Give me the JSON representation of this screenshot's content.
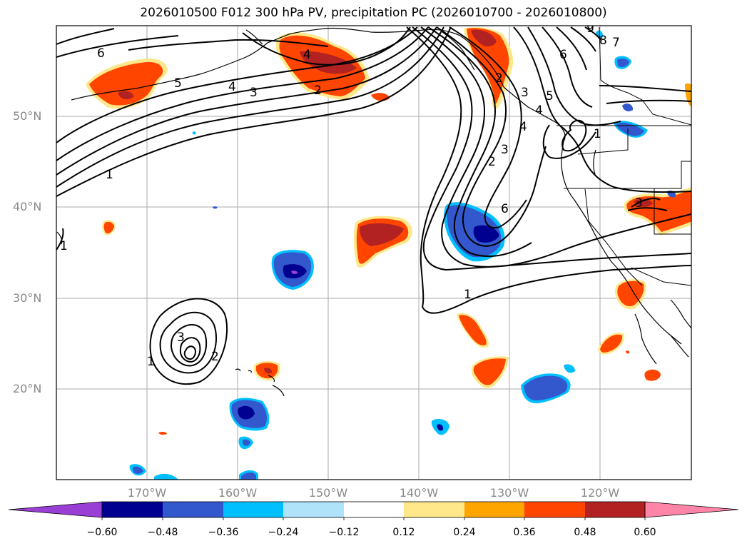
{
  "title": "2026010500 F012 300 hPa PV, precipitation PC (2026010700 - 2026010800)",
  "map": {
    "lat_ticks": [
      "50°N",
      "40°N",
      "30°N",
      "20°N"
    ],
    "lon_ticks": [
      "170°W",
      "160°W",
      "150°W",
      "140°W",
      "130°W",
      "120°W"
    ],
    "contour_labels": [
      "6",
      "5",
      "4",
      "3",
      "2",
      "1",
      "2",
      "3",
      "4",
      "6",
      "1",
      "1",
      "2",
      "3",
      "4",
      "5",
      "6",
      "7",
      "8",
      "9",
      "1",
      "3",
      "4",
      "1",
      "2",
      "3"
    ]
  },
  "colorbar": {
    "ticks": [
      "−0.60",
      "−0.48",
      "−0.36",
      "−0.24",
      "−0.12",
      "0.12",
      "0.24",
      "0.36",
      "0.48",
      "0.60"
    ],
    "colors": [
      "#9a3fd6",
      "#000090",
      "#3357cc",
      "#00bfff",
      "#aee3fa",
      "#ffffff",
      "#ffe88a",
      "#ffa500",
      "#ff4500",
      "#b22222",
      "#ff85a8"
    ]
  }
}
